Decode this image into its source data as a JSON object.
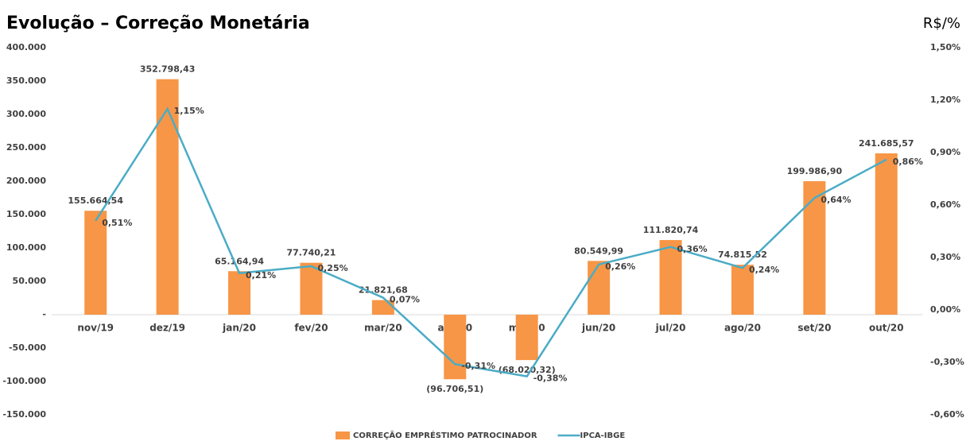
{
  "chart_data": {
    "type": "bar",
    "title": "Evolução – Correção Monetária",
    "unit_label": "R$/%",
    "categories": [
      "nov/19",
      "dez/19",
      "jan/20",
      "fev/20",
      "mar/20",
      "abr/20",
      "mai/20",
      "jun/20",
      "jul/20",
      "ago/20",
      "set/20",
      "out/20"
    ],
    "series": [
      {
        "name": "CORREÇÃO EMPRÉSTIMO PATROCINADOR",
        "type": "bar",
        "color": "#f79646",
        "values": [
          155664.54,
          352798.43,
          65164.94,
          77740.21,
          21821.68,
          -96706.51,
          -68020.32,
          80549.99,
          111820.74,
          74815.52,
          199986.9,
          241685.57
        ],
        "value_labels": [
          "155.664,54",
          "352.798,43",
          "65.164,94",
          "77.740,21",
          "21.821,68",
          "(96.706,51)",
          "(68.020,32)",
          "80.549,99",
          "111.820,74",
          "74.815,52",
          "199.986,90",
          "241.685,57"
        ]
      },
      {
        "name": "IPCA-IBGE",
        "type": "line",
        "axis": "y2",
        "color": "#4bacc6",
        "values": [
          0.51,
          1.15,
          0.21,
          0.25,
          0.07,
          -0.31,
          -0.38,
          0.26,
          0.36,
          0.24,
          0.64,
          0.86
        ],
        "value_labels": [
          "0,51%",
          "1,15%",
          "0,21%",
          "0,25%",
          "0,07%",
          "-0,31%",
          "-0,38%",
          "0,26%",
          "0,36%",
          "0,24%",
          "0,64%",
          "0,86%"
        ]
      }
    ],
    "ylim": [
      -150000,
      400000
    ],
    "yticks": [
      {
        "value": 400000,
        "label": "400.000"
      },
      {
        "value": 350000,
        "label": "350.000"
      },
      {
        "value": 300000,
        "label": "300.000"
      },
      {
        "value": 250000,
        "label": "250.000"
      },
      {
        "value": 200000,
        "label": "200.000"
      },
      {
        "value": 150000,
        "label": "150.000"
      },
      {
        "value": 100000,
        "label": "100.000"
      },
      {
        "value": 50000,
        "label": "50.000"
      },
      {
        "value": 0,
        "label": "-"
      },
      {
        "value": -50000,
        "label": "-50.000"
      },
      {
        "value": -100000,
        "label": "-100.000"
      },
      {
        "value": -150000,
        "label": "-150.000"
      }
    ],
    "y2lim": [
      -0.6,
      1.5
    ],
    "y2ticks": [
      {
        "value": 1.5,
        "label": "1,50%"
      },
      {
        "value": 1.2,
        "label": "1,20%"
      },
      {
        "value": 0.9,
        "label": "0,90%"
      },
      {
        "value": 0.6,
        "label": "0,60%"
      },
      {
        "value": 0.3,
        "label": "0,30%"
      },
      {
        "value": 0,
        "label": "0,00%"
      },
      {
        "value": -0.3,
        "label": "-0,30%"
      },
      {
        "value": -0.6,
        "label": "-0,60%"
      }
    ],
    "grid": false,
    "legend": "bottom"
  }
}
